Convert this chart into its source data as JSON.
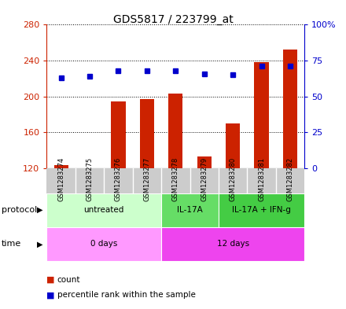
{
  "title": "GDS5817 / 223799_at",
  "samples": [
    "GSM1283274",
    "GSM1283275",
    "GSM1283276",
    "GSM1283277",
    "GSM1283278",
    "GSM1283279",
    "GSM1283280",
    "GSM1283281",
    "GSM1283282"
  ],
  "counts": [
    124,
    120,
    195,
    197,
    203,
    133,
    170,
    238,
    252
  ],
  "percentiles": [
    63,
    64,
    68,
    68,
    68,
    66,
    65,
    71,
    71
  ],
  "count_baseline": 120,
  "ylim_left": [
    120,
    280
  ],
  "ylim_right": [
    0,
    100
  ],
  "left_ticks": [
    120,
    160,
    200,
    240,
    280
  ],
  "right_ticks": [
    0,
    25,
    50,
    75,
    100
  ],
  "right_tick_labels": [
    "0",
    "25",
    "50",
    "75",
    "100%"
  ],
  "protocol_groups": [
    {
      "label": "untreated",
      "start": 0,
      "end": 4,
      "color": "#ccffcc"
    },
    {
      "label": "IL-17A",
      "start": 4,
      "end": 6,
      "color": "#66dd66"
    },
    {
      "label": "IL-17A + IFN-g",
      "start": 6,
      "end": 9,
      "color": "#44cc44"
    }
  ],
  "time_groups": [
    {
      "label": "0 days",
      "start": 0,
      "end": 4,
      "color": "#ff99ff"
    },
    {
      "label": "12 days",
      "start": 4,
      "end": 9,
      "color": "#ee44ee"
    }
  ],
  "bar_color": "#cc2200",
  "dot_color": "#0000cc",
  "sample_bg_color": "#cccccc",
  "left_axis_color": "#cc2200",
  "right_axis_color": "#0000cc",
  "legend_count_color": "#cc2200",
  "legend_pct_color": "#0000cc"
}
